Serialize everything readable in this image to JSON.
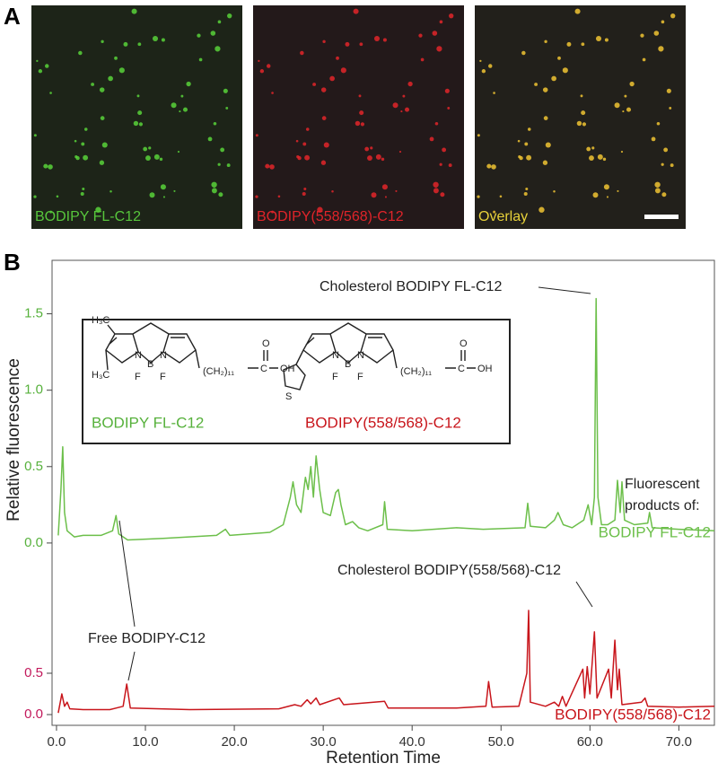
{
  "figure": {
    "panel_letters": [
      "A",
      "B"
    ],
    "micrographs": [
      {
        "label": "BODIPY FL-C12",
        "color": "#57c63c"
      },
      {
        "label": "BODIPY(558/568)-C12",
        "color": "#e0242a"
      },
      {
        "label": "Overlay",
        "color": "#e8d23a"
      }
    ],
    "inset": {
      "molecules": [
        {
          "name": "BODIPY FL-C12",
          "color": "#57b13c",
          "atoms": [
            "H₃C",
            "H₃C",
            "N",
            "N",
            "B",
            "F",
            "F",
            "(CH₂)₁₁",
            "C",
            "OH",
            "O"
          ]
        },
        {
          "name": "BODIPY(558/568)-C12",
          "color": "#c8151b",
          "atoms": [
            "N",
            "N",
            "B",
            "F",
            "F",
            "S",
            "(CH₂)₁₁",
            "C",
            "OH",
            "O"
          ]
        }
      ]
    },
    "annotations": [
      "Cholesterol BODIPY FL-C12",
      "Fluorescent",
      "products of:",
      "Cholesterol BODIPY(558/568)-C12",
      "Free BODIPY-C12"
    ]
  },
  "chart_data": {
    "type": "line",
    "x_label": "Retention Time",
    "y_label": "Relative fluorescence",
    "xlim": [
      -0.5,
      74
    ],
    "xticks": [
      {
        "value": 0,
        "label": "0.0"
      },
      {
        "value": 10,
        "label": "10.0"
      },
      {
        "value": 20,
        "label": "20.0"
      },
      {
        "value": 30,
        "label": "30.0"
      },
      {
        "value": 40,
        "label": "40.0"
      },
      {
        "value": 50,
        "label": "50.0"
      },
      {
        "value": 60,
        "label": "60.0"
      },
      {
        "value": 70,
        "label": "70.0"
      }
    ],
    "series": [
      {
        "name": "BODIPY FL-C12",
        "color": "#6cbf4a",
        "tick_color": "#57b13c",
        "ylim": [
          -0.03,
          1.85
        ],
        "yticks": [
          {
            "value": 0,
            "label": "0.0"
          },
          0.5,
          {
            "value": 1,
            "label": "1.0"
          },
          1.5
        ],
        "x": [
          0.2,
          0.5,
          0.7,
          0.9,
          1.2,
          2,
          3,
          5,
          6.3,
          6.7,
          7,
          8,
          12,
          18,
          19,
          19.5,
          24,
          25.5,
          26.3,
          26.6,
          27,
          27.5,
          28,
          28.3,
          28.6,
          28.9,
          29.2,
          29.6,
          30,
          30.8,
          31.4,
          31.7,
          32,
          32.5,
          33.3,
          34,
          35,
          36.7,
          36.9,
          37.2,
          40,
          45,
          48,
          52.7,
          53,
          53.3,
          55,
          56,
          56.4,
          57,
          58,
          59.3,
          59.8,
          60.2,
          60.5,
          60.7,
          60.9,
          61.3,
          62,
          62.8,
          63.1,
          63.4,
          63.6,
          63.9,
          65,
          66.5,
          66.7,
          67,
          70,
          74
        ],
        "values": [
          0.05,
          0.35,
          0.63,
          0.2,
          0.08,
          0.04,
          0.05,
          0.05,
          0.08,
          0.18,
          0.06,
          0.02,
          0.03,
          0.05,
          0.09,
          0.05,
          0.07,
          0.12,
          0.3,
          0.4,
          0.25,
          0.2,
          0.43,
          0.35,
          0.5,
          0.3,
          0.57,
          0.35,
          0.2,
          0.18,
          0.33,
          0.35,
          0.25,
          0.12,
          0.14,
          0.1,
          0.08,
          0.12,
          0.27,
          0.09,
          0.08,
          0.1,
          0.09,
          0.1,
          0.26,
          0.11,
          0.1,
          0.15,
          0.2,
          0.12,
          0.1,
          0.15,
          0.25,
          0.12,
          0.3,
          1.6,
          0.3,
          0.12,
          0.12,
          0.15,
          0.41,
          0.2,
          0.4,
          0.15,
          0.12,
          0.13,
          0.2,
          0.1,
          0.09,
          0.08
        ]
      },
      {
        "name": "BODIPY(558/568)-C12",
        "color": "#c8151b",
        "tick_color": "#c2185b",
        "ylim": [
          -0.13,
          2.02
        ],
        "yticks": [
          {
            "value": 0,
            "label": "0.0"
          },
          0.5
        ],
        "x": [
          0.2,
          0.6,
          0.9,
          1.2,
          1.5,
          3,
          6,
          7.5,
          7.9,
          8.3,
          15,
          25,
          26.8,
          27.5,
          28.2,
          28.6,
          29.2,
          29.6,
          31.8,
          32.3,
          36.9,
          37.3,
          45,
          48.3,
          48.6,
          49,
          52,
          52.9,
          53.1,
          53.3,
          55,
          56,
          56.5,
          56.9,
          57.3,
          59.2,
          59.4,
          59.7,
          60,
          60.5,
          60.8,
          62.1,
          62.4,
          62.8,
          63.1,
          63.3,
          63.6,
          65.8,
          66.2,
          66.5,
          70,
          74
        ],
        "values": [
          0.02,
          0.25,
          0.1,
          0.15,
          0.07,
          0.06,
          0.06,
          0.1,
          0.37,
          0.08,
          0.06,
          0.07,
          0.12,
          0.1,
          0.18,
          0.13,
          0.2,
          0.12,
          0.2,
          0.12,
          0.16,
          0.08,
          0.08,
          0.1,
          0.4,
          0.09,
          0.1,
          0.5,
          1.26,
          0.15,
          0.1,
          0.15,
          0.1,
          0.22,
          0.1,
          0.55,
          0.2,
          0.58,
          0.25,
          1.0,
          0.2,
          0.55,
          0.2,
          0.9,
          0.3,
          0.55,
          0.12,
          0.15,
          0.2,
          0.1,
          0.09,
          0.1
        ]
      }
    ]
  }
}
